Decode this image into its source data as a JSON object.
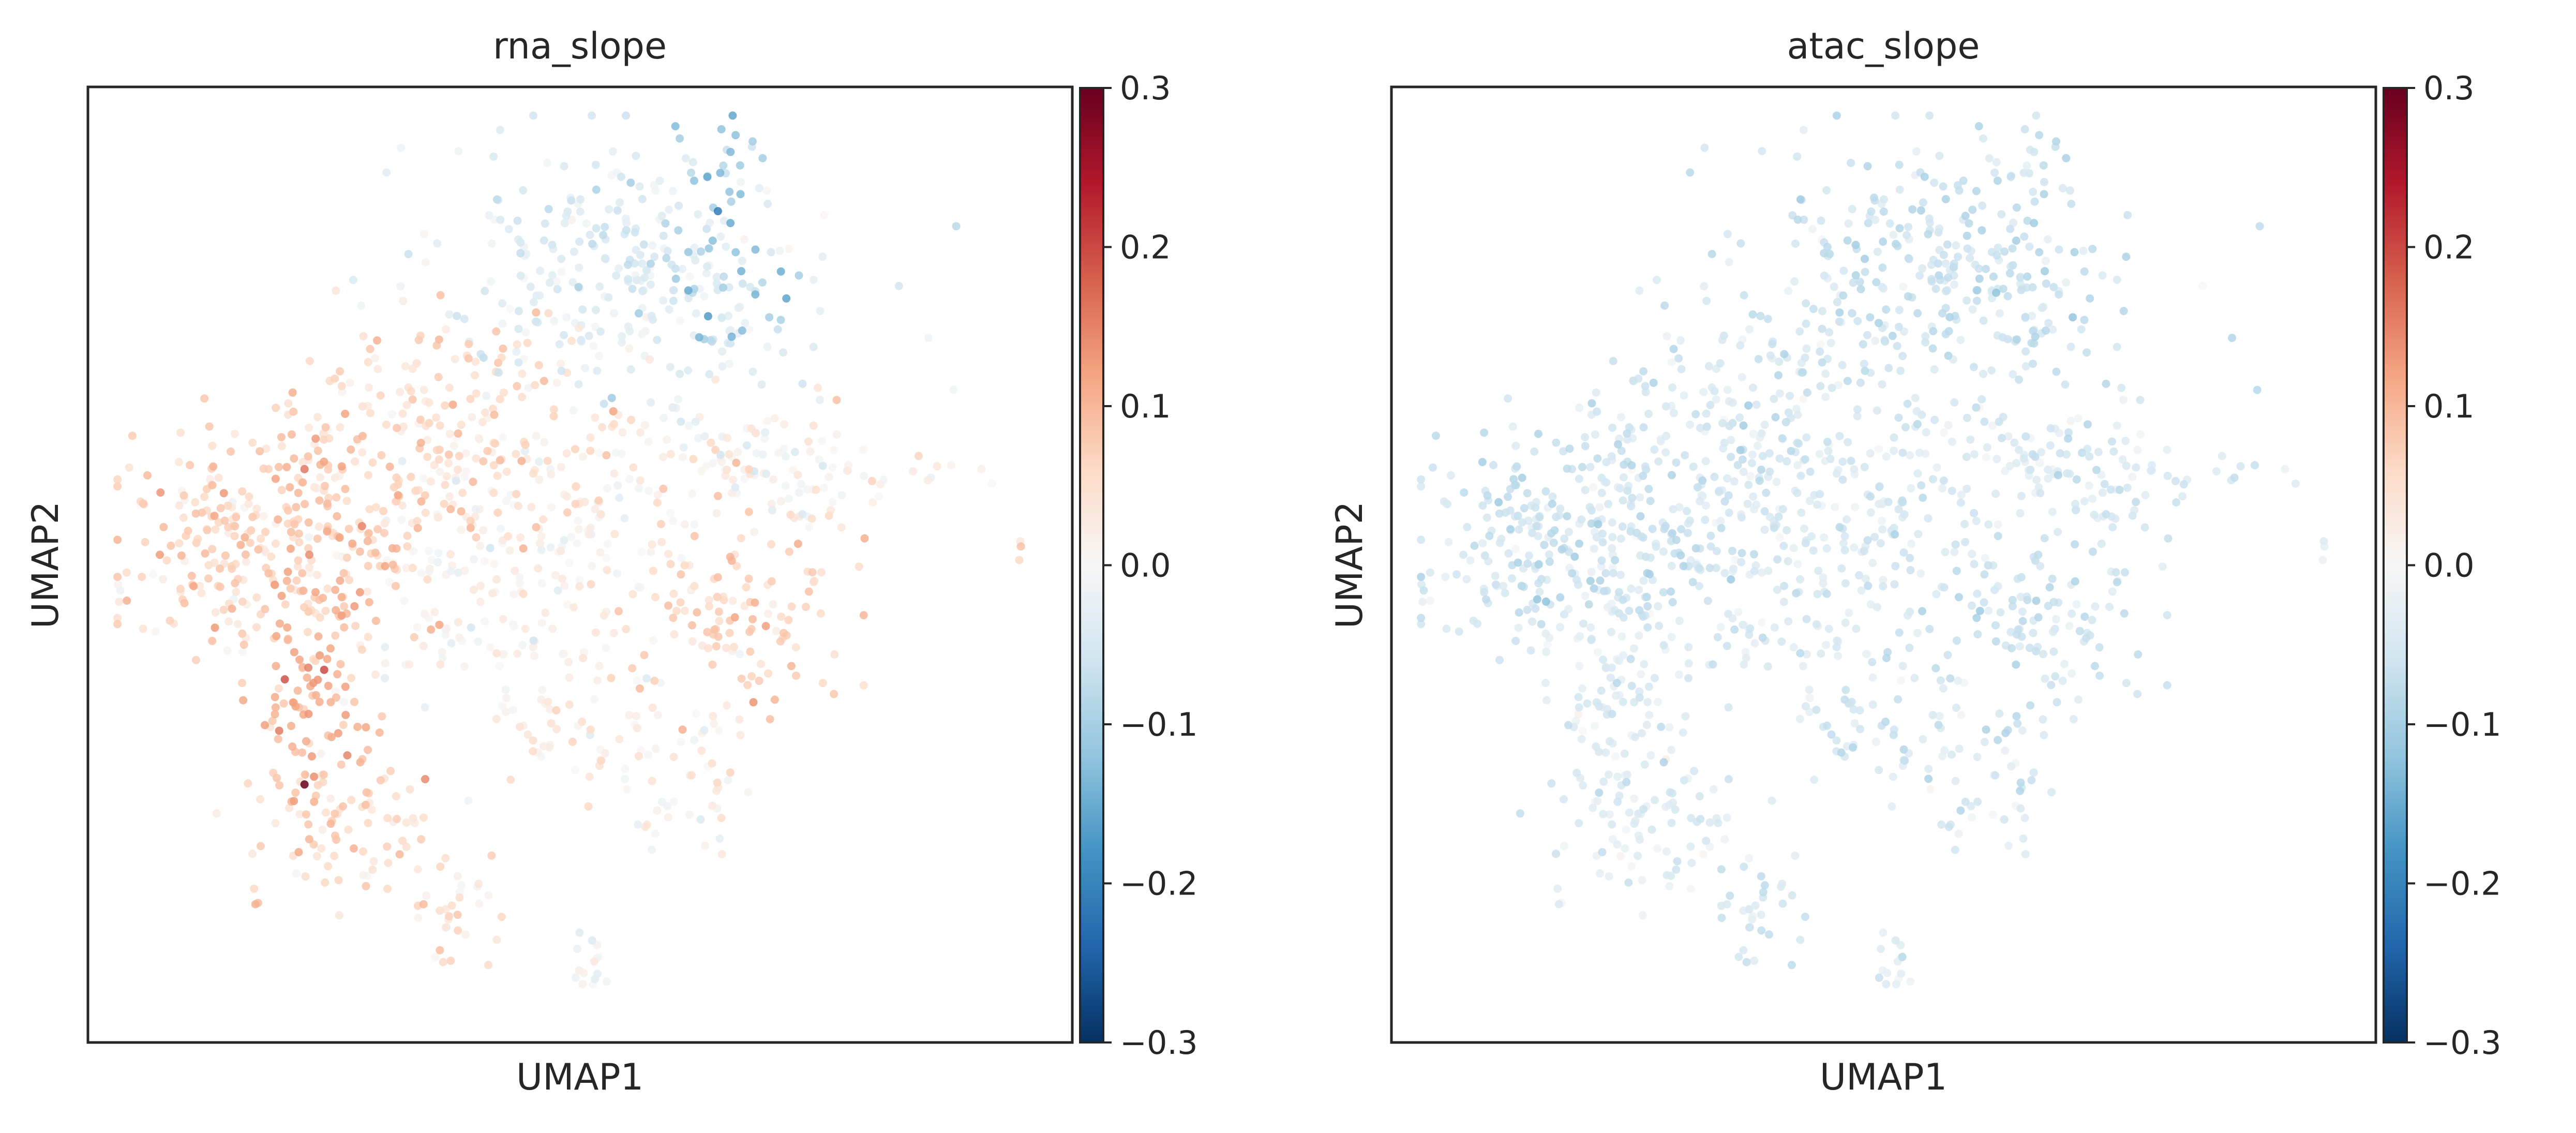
{
  "chart_data": [
    {
      "type": "scatter",
      "title": "rna_slope",
      "xlabel": "UMAP1",
      "ylabel": "UMAP2",
      "grid": false,
      "legend": "none",
      "colorbar": {
        "cmap": "RdBu_r",
        "vmin": -0.3,
        "vmax": 0.3,
        "ticks": [
          0.3,
          0.2,
          0.1,
          0.0,
          -0.1,
          -0.2,
          -0.3
        ],
        "tick_labels": [
          "0.3",
          "0.2",
          "0.1",
          "0.0",
          "−0.1",
          "−0.2",
          "−0.3"
        ]
      },
      "notable_points": [
        {
          "x": 0.22,
          "y": 0.27,
          "value": 0.3
        },
        {
          "x": 0.24,
          "y": 0.39,
          "value": 0.2
        },
        {
          "x": 0.2,
          "y": 0.38,
          "value": 0.19
        },
        {
          "x": 0.22,
          "y": 0.6,
          "value": 0.16
        },
        {
          "x": 0.64,
          "y": 0.87,
          "value": -0.21
        },
        {
          "x": 0.63,
          "y": 0.76,
          "value": -0.17
        }
      ],
      "pattern": "positive (red) slopes concentrated on the left lobe and lower-left arm; negative (blue) slopes on the top cluster; remaining cells near zero"
    },
    {
      "type": "scatter",
      "title": "atac_slope",
      "xlabel": "UMAP1",
      "ylabel": "UMAP2",
      "grid": false,
      "legend": "none",
      "colorbar": {
        "cmap": "RdBu_r",
        "vmin": -0.3,
        "vmax": 0.3,
        "ticks": [
          0.3,
          0.2,
          0.1,
          0.0,
          -0.1,
          -0.2,
          -0.3
        ],
        "tick_labels": [
          "0.3",
          "0.2",
          "0.1",
          "0.0",
          "−0.1",
          "−0.2",
          "−0.3"
        ]
      },
      "value_range_observed": [
        -0.12,
        -0.02
      ],
      "pattern": "almost all cells slightly negative (light blue), slightly stronger on top cluster"
    }
  ]
}
